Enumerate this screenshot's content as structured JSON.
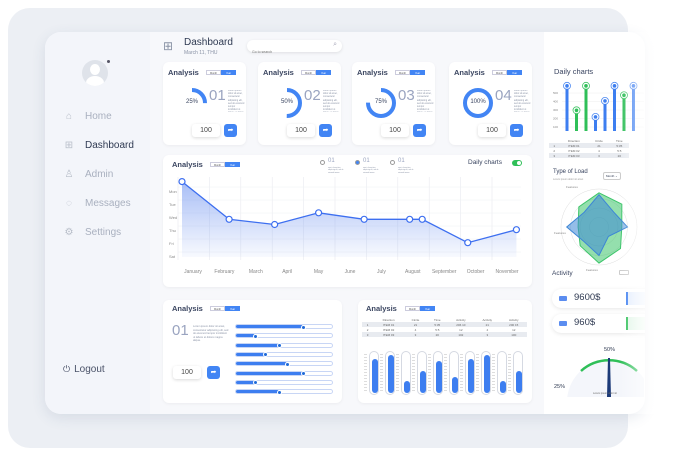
{
  "sidebar": {
    "items": [
      {
        "label": "Home",
        "icon": "home-icon",
        "glyph": "⌂"
      },
      {
        "label": "Dashboard",
        "icon": "grid-icon",
        "glyph": "⊞"
      },
      {
        "label": "Admin",
        "icon": "user-icon",
        "glyph": "♙"
      },
      {
        "label": "Messages",
        "icon": "chat-icon",
        "glyph": "◌"
      },
      {
        "label": "Settings",
        "icon": "gear-icon",
        "glyph": "⚙"
      }
    ],
    "active": "Dashboard",
    "logout": "Logout",
    "logout_glyph": "⏻"
  },
  "header": {
    "title": "Dashboard",
    "date": "March 11, THU",
    "search_placeholder": "Go to search"
  },
  "toggle": {
    "month": "Month",
    "year": "Year"
  },
  "lorem": "Lorem ipsum dolor sit amet, consectetur adipiscing elit, sed do eiusmod tempor incididunt ut labore et dolore magna aliqua.",
  "analysis_cards": [
    {
      "title": "Analysis",
      "percent": 25,
      "percent_label": "25%",
      "num": "01",
      "value": "100"
    },
    {
      "title": "Analysis",
      "percent": 50,
      "percent_label": "50%",
      "num": "02",
      "value": "100"
    },
    {
      "title": "Analysis",
      "percent": 75,
      "percent_label": "75%",
      "num": "03",
      "value": "100"
    },
    {
      "title": "Analysis",
      "percent": 100,
      "percent_label": "100%",
      "num": "04",
      "value": "100"
    }
  ],
  "line_card": {
    "title": "Analysis",
    "options": [
      {
        "num": "01",
        "selected": false
      },
      {
        "num": "01",
        "selected": true
      },
      {
        "num": "01",
        "selected": false
      }
    ],
    "daily_label": "Daily charts",
    "daily_on": true
  },
  "chart_data": [
    {
      "type": "area",
      "categories": [
        "January",
        "February",
        "March",
        "April",
        "May",
        "June",
        "July",
        "August",
        "September",
        "October",
        "November"
      ],
      "y_ticks": [
        "Mon",
        "Tue",
        "Wed",
        "Thu",
        "Fri",
        "Sat"
      ],
      "x": [
        -0.35,
        1.15,
        2.6,
        4.0,
        5.45,
        6.9,
        7.3,
        8.75,
        10.3
      ],
      "y": [
        5.8,
        2.9,
        2.5,
        3.4,
        2.9,
        2.9,
        2.9,
        1.1,
        2.1
      ],
      "ylim": [
        0,
        6
      ],
      "color": "#3d6ff0"
    },
    {
      "type": "bar",
      "title": "Daily charts",
      "y_ticks": [
        "500",
        "400",
        "300",
        "200",
        "100"
      ],
      "values": [
        530,
        270,
        530,
        200,
        370,
        530,
        430,
        530
      ],
      "colors": [
        "#3d7ef0",
        "#2fbf58",
        "#2fbf58",
        "#3d7ef0",
        "#3d7ef0",
        "#3d7ef0",
        "#2fbf58",
        "#3d7ef0"
      ],
      "ylim": [
        50,
        560
      ]
    },
    {
      "type": "radar",
      "title": "Type of Load",
      "axes_labels": [
        "Features",
        "Features",
        "Features"
      ],
      "series": [
        {
          "name": "green",
          "values": [
            0.9,
            0.85,
            0.6,
            0.8,
            0.95,
            0.7,
            0.55,
            0.75
          ],
          "color": "#3cc56a"
        },
        {
          "name": "blue",
          "values": [
            0.85,
            0.55,
            0.75,
            0.35,
            0.75,
            0.55,
            0.85,
            0.55
          ],
          "color": "#3d86d6"
        }
      ]
    }
  ],
  "slider_card": {
    "title": "Analysis",
    "num": "01",
    "value": "100",
    "sliders": [
      70,
      20,
      45,
      30,
      53,
      70,
      20,
      45
    ]
  },
  "table_card": {
    "title": "Analysis",
    "headers": [
      "",
      "Direction",
      "Circle",
      "Time",
      "Activity",
      "Activity",
      "Activity"
    ],
    "rows": [
      [
        "1",
        "ITEM 01",
        "21",
        "5:35",
        "206 10",
        "21",
        "200 15"
      ],
      [
        "2",
        "ITEM 02",
        "4",
        "5:5",
        "12",
        "4",
        "12"
      ],
      [
        "3",
        "ITEM 03",
        "3",
        "20",
        "102",
        "3",
        "100"
      ]
    ],
    "bars": [
      85,
      95,
      30,
      55,
      80,
      40,
      85,
      95,
      30,
      55
    ]
  },
  "daily": {
    "title": "Daily charts",
    "headers": [
      "",
      "Direction",
      "Circle",
      "Time"
    ],
    "rows": [
      [
        "1",
        "ITEM 01",
        "21",
        "5:35"
      ],
      [
        "2",
        "ITEM 02",
        "4",
        "5:5"
      ],
      [
        "3",
        "ITEM 03",
        "3",
        "20"
      ]
    ]
  },
  "load": {
    "title": "Type of Load",
    "subtitle": "Lorem ipsum dolor sit amet",
    "select": "Month"
  },
  "activity": {
    "title": "Activity",
    "items": [
      {
        "amount": "9600$",
        "color": "#3d7ef0"
      },
      {
        "amount": "960$",
        "color": "#2fbf58"
      }
    ],
    "gauge_top": "50%",
    "gauge_left": "25%",
    "gauge_caption": "Lorem ipsum dolor sit",
    "gauge_value": 50
  }
}
